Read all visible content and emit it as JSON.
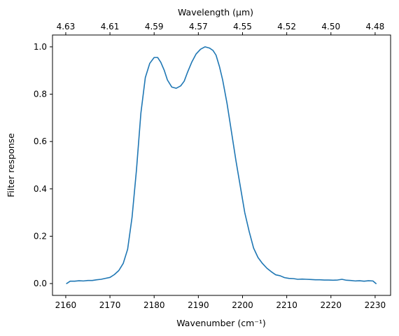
{
  "chart_data": {
    "type": "line",
    "xlabel": "Wavenumber (cm⁻¹)",
    "ylabel": "Filter response",
    "top_xlabel": "Wavelength (μm)",
    "xlim": [
      2157,
      2233.5
    ],
    "ylim": [
      -0.05,
      1.05
    ],
    "x_ticks": [
      2160,
      2170,
      2180,
      2190,
      2200,
      2210,
      2220,
      2230
    ],
    "y_ticks": [
      0.0,
      0.2,
      0.4,
      0.6,
      0.8,
      1.0
    ],
    "y_tick_labels": [
      "0.0",
      "0.2",
      "0.4",
      "0.6",
      "0.8",
      "1.0"
    ],
    "top_ticks": [
      {
        "label": "4.63",
        "wavenumber": 2160
      },
      {
        "label": "4.61",
        "wavenumber": 2170
      },
      {
        "label": "4.59",
        "wavenumber": 2180
      },
      {
        "label": "4.57",
        "wavenumber": 2190
      },
      {
        "label": "4.55",
        "wavenumber": 2200
      },
      {
        "label": "4.52",
        "wavenumber": 2210
      },
      {
        "label": "4.50",
        "wavenumber": 2220
      },
      {
        "label": "4.48",
        "wavenumber": 2230
      }
    ],
    "grid": false,
    "line_color": "#1f77b4",
    "series": [
      {
        "x": [
          2160.2,
          2161,
          2162,
          2163,
          2164,
          2165,
          2166,
          2167,
          2168,
          2169,
          2170,
          2171,
          2172,
          2173,
          2174,
          2175,
          2176,
          2177,
          2178,
          2179,
          2180,
          2180.8,
          2181.5,
          2182.3,
          2183,
          2184,
          2185,
          2186,
          2186.8,
          2187.5,
          2188.5,
          2189.5,
          2190.5,
          2191.5,
          2192.5,
          2193.3,
          2194,
          2194.8,
          2195.5,
          2196.5,
          2197.5,
          2198.5,
          2199.5,
          2200.5,
          2201.5,
          2202.5,
          2203.5,
          2204.5,
          2205.5,
          2206.5,
          2207.5,
          2208.5,
          2209.5,
          2210.5,
          2211.5,
          2212.5,
          2213.5,
          2214.5,
          2215.5,
          2216.5,
          2217.5,
          2218.5,
          2219.5,
          2220.5,
          2221.5,
          2222.5,
          2223.5,
          2224.5,
          2225.5,
          2226.5,
          2227.5,
          2228.5,
          2229.5,
          2230.2
        ],
        "y": [
          0.0,
          0.01,
          0.01,
          0.012,
          0.011,
          0.013,
          0.013,
          0.016,
          0.018,
          0.022,
          0.026,
          0.038,
          0.055,
          0.085,
          0.145,
          0.28,
          0.48,
          0.72,
          0.87,
          0.93,
          0.955,
          0.955,
          0.935,
          0.9,
          0.86,
          0.83,
          0.825,
          0.835,
          0.855,
          0.89,
          0.935,
          0.97,
          0.99,
          1.0,
          0.995,
          0.985,
          0.965,
          0.915,
          0.86,
          0.76,
          0.64,
          0.52,
          0.41,
          0.3,
          0.22,
          0.15,
          0.11,
          0.085,
          0.065,
          0.05,
          0.037,
          0.033,
          0.025,
          0.022,
          0.021,
          0.018,
          0.019,
          0.018,
          0.017,
          0.016,
          0.016,
          0.015,
          0.015,
          0.014,
          0.015,
          0.018,
          0.014,
          0.013,
          0.011,
          0.012,
          0.01,
          0.012,
          0.011,
          0.0
        ]
      }
    ]
  }
}
